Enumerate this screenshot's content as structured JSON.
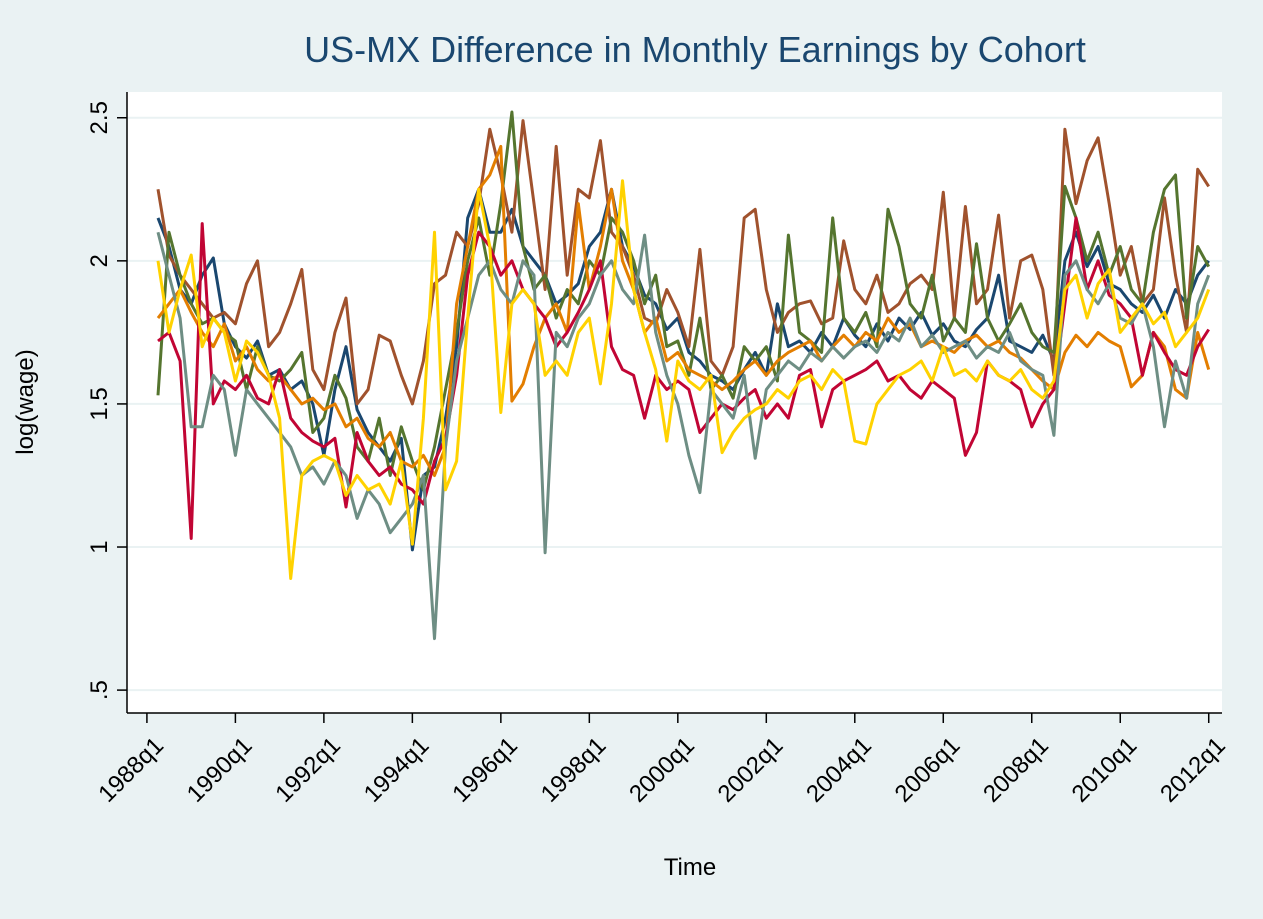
{
  "chart_data": {
    "type": "line",
    "title": "US-MX Difference in Monthly Earnings by Cohort",
    "x_label": "Time",
    "y_label": "log(wage)",
    "x": [
      113,
      114,
      115,
      116,
      117,
      118,
      119,
      120,
      121,
      122,
      123,
      124,
      125,
      126,
      127,
      128,
      129,
      130,
      131,
      132,
      133,
      134,
      135,
      136,
      137,
      138,
      139,
      140,
      141,
      142,
      143,
      144,
      145,
      146,
      147,
      148,
      149,
      150,
      151,
      152,
      153,
      154,
      155,
      156,
      157,
      158,
      159,
      160,
      161,
      162,
      163,
      164,
      165,
      166,
      167,
      168,
      169,
      170,
      171,
      172,
      173,
      174,
      175,
      176,
      177,
      178,
      179,
      180,
      181,
      182,
      183,
      184,
      185,
      186,
      187,
      188,
      189,
      190,
      191,
      192,
      193,
      194,
      195,
      196,
      197,
      198,
      199,
      200,
      201,
      202,
      203,
      204,
      205,
      206,
      207,
      208
    ],
    "xlim": [
      110.2,
      209.2
    ],
    "xticks": [
      {
        "value": 112,
        "label": "1988q1"
      },
      {
        "value": 120,
        "label": "1990q1"
      },
      {
        "value": 128,
        "label": "1992q1"
      },
      {
        "value": 136,
        "label": "1994q1"
      },
      {
        "value": 144,
        "label": "1996q1"
      },
      {
        "value": 152,
        "label": "1998q1"
      },
      {
        "value": 160,
        "label": "2000q1"
      },
      {
        "value": 168,
        "label": "2002q1"
      },
      {
        "value": 176,
        "label": "2004q1"
      },
      {
        "value": 184,
        "label": "2006q1"
      },
      {
        "value": 192,
        "label": "2008q1"
      },
      {
        "value": 200,
        "label": "2010q1"
      },
      {
        "value": 208,
        "label": "2012q1"
      }
    ],
    "ylim": [
      0.42,
      2.59
    ],
    "yticks": [
      {
        "value": 0.5,
        "label": ".5"
      },
      1,
      1.5,
      2,
      2.5
    ],
    "grid": true,
    "series": [
      {
        "color": "#1a476f",
        "values": [
          2.15,
          2.05,
          1.9,
          1.85,
          1.95,
          2.01,
          1.78,
          1.7,
          1.66,
          1.72,
          1.6,
          1.62,
          1.55,
          1.58,
          1.5,
          1.32,
          1.55,
          1.7,
          1.48,
          1.4,
          1.35,
          1.3,
          1.38,
          0.99,
          1.25,
          1.28,
          1.45,
          1.7,
          2.15,
          2.25,
          2.1,
          2.1,
          2.18,
          2.05,
          2.0,
          1.95,
          1.85,
          1.88,
          1.92,
          2.05,
          2.1,
          2.25,
          2.05,
          1.98,
          1.88,
          1.85,
          1.76,
          1.8,
          1.68,
          1.65,
          1.6,
          1.58,
          1.55,
          1.62,
          1.68,
          1.6,
          1.85,
          1.7,
          1.72,
          1.68,
          1.75,
          1.7,
          1.8,
          1.74,
          1.7,
          1.78,
          1.72,
          1.8,
          1.76,
          1.82,
          1.74,
          1.78,
          1.72,
          1.7,
          1.76,
          1.8,
          1.95,
          1.72,
          1.7,
          1.68,
          1.74,
          1.65,
          2.0,
          2.1,
          1.98,
          2.05,
          1.92,
          1.9,
          1.85,
          1.82,
          1.88,
          1.8,
          1.9,
          1.85,
          1.95,
          2.0
        ]
      },
      {
        "color": "#a0522d",
        "values": [
          2.25,
          2.02,
          1.95,
          1.9,
          1.85,
          1.8,
          1.82,
          1.78,
          1.92,
          2.0,
          1.7,
          1.75,
          1.85,
          1.97,
          1.62,
          1.55,
          1.75,
          1.87,
          1.5,
          1.55,
          1.74,
          1.72,
          1.6,
          1.5,
          1.65,
          1.92,
          1.95,
          2.1,
          2.05,
          2.2,
          2.46,
          2.3,
          2.1,
          2.49,
          2.2,
          1.9,
          2.4,
          1.95,
          2.25,
          2.22,
          2.42,
          2.1,
          2.05,
          1.95,
          1.8,
          1.78,
          1.9,
          1.82,
          1.7,
          2.04,
          1.65,
          1.6,
          1.7,
          2.15,
          2.18,
          1.9,
          1.75,
          1.82,
          1.85,
          1.86,
          1.78,
          1.8,
          2.07,
          1.9,
          1.85,
          1.95,
          1.82,
          1.85,
          1.92,
          1.95,
          1.9,
          2.24,
          1.8,
          2.19,
          1.85,
          1.9,
          2.16,
          1.8,
          2.0,
          2.02,
          1.9,
          1.6,
          2.46,
          2.2,
          2.35,
          2.43,
          2.2,
          1.95,
          2.05,
          1.85,
          1.9,
          2.22,
          1.95,
          1.75,
          2.32,
          2.26
        ]
      },
      {
        "color": "#55752f",
        "values": [
          1.53,
          2.1,
          1.95,
          1.85,
          1.78,
          1.8,
          1.75,
          1.72,
          1.55,
          1.7,
          1.6,
          1.58,
          1.62,
          1.68,
          1.4,
          1.45,
          1.6,
          1.52,
          1.35,
          1.3,
          1.45,
          1.25,
          1.42,
          1.3,
          1.2,
          1.35,
          1.55,
          1.75,
          2.0,
          2.15,
          1.95,
          2.2,
          2.52,
          2.05,
          1.9,
          1.95,
          1.8,
          1.9,
          1.85,
          2.0,
          1.95,
          2.15,
          2.1,
          2.0,
          1.85,
          1.95,
          1.7,
          1.72,
          1.6,
          1.8,
          1.55,
          1.6,
          1.52,
          1.7,
          1.65,
          1.7,
          1.58,
          2.09,
          1.75,
          1.72,
          1.68,
          2.15,
          1.8,
          1.75,
          1.82,
          1.7,
          2.18,
          2.05,
          1.85,
          1.8,
          1.95,
          1.72,
          1.8,
          1.75,
          2.06,
          1.8,
          1.72,
          1.78,
          1.85,
          1.75,
          1.7,
          1.68,
          2.26,
          2.15,
          2.0,
          2.1,
          1.95,
          2.05,
          1.9,
          1.85,
          2.1,
          2.25,
          2.3,
          1.8,
          2.05,
          1.98
        ]
      },
      {
        "color": "#e37e00",
        "values": [
          1.8,
          1.85,
          1.9,
          1.82,
          1.75,
          1.7,
          1.78,
          1.65,
          1.7,
          1.62,
          1.58,
          1.6,
          1.55,
          1.5,
          1.52,
          1.48,
          1.5,
          1.42,
          1.45,
          1.38,
          1.35,
          1.4,
          1.3,
          1.28,
          1.32,
          1.25,
          1.35,
          1.85,
          2.05,
          2.25,
          2.3,
          2.4,
          1.51,
          1.57,
          1.7,
          1.8,
          1.85,
          1.75,
          2.2,
          1.9,
          2.05,
          2.25,
          2.0,
          1.9,
          1.75,
          1.8,
          1.65,
          1.68,
          1.62,
          1.6,
          1.58,
          1.55,
          1.58,
          1.62,
          1.65,
          1.6,
          1.65,
          1.68,
          1.7,
          1.72,
          1.65,
          1.7,
          1.74,
          1.7,
          1.75,
          1.72,
          1.8,
          1.75,
          1.78,
          1.7,
          1.72,
          1.7,
          1.68,
          1.72,
          1.74,
          1.7,
          1.72,
          1.68,
          1.66,
          1.62,
          1.58,
          1.55,
          1.68,
          1.74,
          1.7,
          1.75,
          1.72,
          1.7,
          1.56,
          1.6,
          1.75,
          1.7,
          1.55,
          1.52,
          1.75,
          1.62
        ]
      },
      {
        "color": "#c10534",
        "values": [
          1.72,
          1.75,
          1.65,
          1.03,
          2.13,
          1.5,
          1.58,
          1.55,
          1.6,
          1.52,
          1.5,
          1.62,
          1.45,
          1.4,
          1.37,
          1.35,
          1.38,
          1.14,
          1.4,
          1.3,
          1.25,
          1.28,
          1.22,
          1.2,
          1.15,
          1.3,
          1.38,
          1.6,
          1.95,
          2.1,
          2.05,
          1.95,
          2.0,
          1.9,
          1.85,
          1.8,
          1.7,
          1.75,
          1.82,
          1.9,
          2.0,
          1.7,
          1.62,
          1.6,
          1.45,
          1.6,
          1.55,
          1.58,
          1.55,
          1.4,
          1.45,
          1.5,
          1.48,
          1.52,
          1.55,
          1.45,
          1.5,
          1.45,
          1.6,
          1.62,
          1.42,
          1.55,
          1.58,
          1.6,
          1.62,
          1.65,
          1.58,
          1.6,
          1.55,
          1.52,
          1.58,
          1.55,
          1.52,
          1.32,
          1.4,
          1.65,
          1.6,
          1.58,
          1.55,
          1.42,
          1.5,
          1.55,
          1.85,
          2.15,
          1.9,
          2.0,
          1.88,
          1.85,
          1.8,
          1.6,
          1.75,
          1.68,
          1.62,
          1.6,
          1.7,
          1.76
        ]
      },
      {
        "color": "#6e8e84",
        "values": [
          2.1,
          1.95,
          1.8,
          1.42,
          1.42,
          1.6,
          1.55,
          1.32,
          1.55,
          1.5,
          1.45,
          1.4,
          1.35,
          1.25,
          1.28,
          1.22,
          1.3,
          1.25,
          1.1,
          1.2,
          1.15,
          1.05,
          1.1,
          1.15,
          1.25,
          0.68,
          1.35,
          1.65,
          1.8,
          1.95,
          2.0,
          1.9,
          1.85,
          2.0,
          1.95,
          0.98,
          1.75,
          1.7,
          1.8,
          1.85,
          1.95,
          2.0,
          1.9,
          1.85,
          2.09,
          1.75,
          1.6,
          1.5,
          1.32,
          1.19,
          1.55,
          1.5,
          1.45,
          1.6,
          1.31,
          1.55,
          1.6,
          1.65,
          1.62,
          1.68,
          1.65,
          1.7,
          1.66,
          1.7,
          1.72,
          1.68,
          1.75,
          1.72,
          1.8,
          1.7,
          1.74,
          1.68,
          1.7,
          1.72,
          1.66,
          1.7,
          1.68,
          1.75,
          1.65,
          1.62,
          1.6,
          1.39,
          1.95,
          2.0,
          1.9,
          1.85,
          1.92,
          1.8,
          1.78,
          1.85,
          1.7,
          1.42,
          1.65,
          1.52,
          1.85,
          1.95
        ]
      },
      {
        "color": "#ffd200",
        "values": [
          2.0,
          1.75,
          1.9,
          2.02,
          1.7,
          1.8,
          1.75,
          1.58,
          1.72,
          1.68,
          1.6,
          1.45,
          0.89,
          1.25,
          1.3,
          1.32,
          1.3,
          1.18,
          1.25,
          1.2,
          1.22,
          1.15,
          1.3,
          1.01,
          1.45,
          2.1,
          1.2,
          1.3,
          1.8,
          2.25,
          2.05,
          1.47,
          1.85,
          1.9,
          1.85,
          1.6,
          1.65,
          1.6,
          1.75,
          1.8,
          1.57,
          1.85,
          2.28,
          1.9,
          1.75,
          1.62,
          1.37,
          1.65,
          1.58,
          1.55,
          1.6,
          1.33,
          1.4,
          1.45,
          1.48,
          1.5,
          1.55,
          1.52,
          1.58,
          1.6,
          1.55,
          1.62,
          1.58,
          1.37,
          1.36,
          1.5,
          1.55,
          1.6,
          1.62,
          1.65,
          1.58,
          1.7,
          1.6,
          1.62,
          1.58,
          1.65,
          1.6,
          1.58,
          1.62,
          1.55,
          1.52,
          1.58,
          1.9,
          1.95,
          1.8,
          1.92,
          1.97,
          1.75,
          1.8,
          1.85,
          1.78,
          1.82,
          1.7,
          1.75,
          1.8,
          1.9
        ]
      }
    ]
  }
}
